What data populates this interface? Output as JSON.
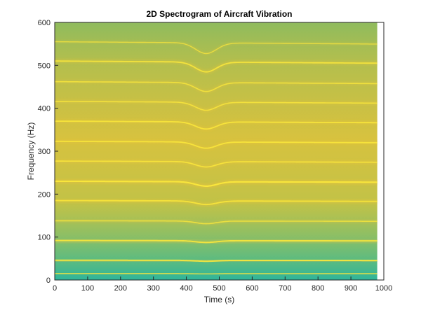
{
  "chart_data": {
    "type": "heatmap",
    "title": "2D Spectrogram of Aircraft Vibration",
    "xlabel": "Time (s)",
    "ylabel": "Frequency (Hz)",
    "xlim": [
      0,
      1000
    ],
    "ylim": [
      0,
      600
    ],
    "x_data_extent": [
      0,
      980
    ],
    "x_ticks": [
      0,
      100,
      200,
      300,
      400,
      500,
      600,
      700,
      800,
      900,
      1000
    ],
    "y_ticks": [
      0,
      100,
      200,
      300,
      400,
      500,
      600
    ],
    "grid": false,
    "colormap": "parula",
    "colors": {
      "low": "#2fb59a",
      "mid_low": "#7fbf6a",
      "mid": "#b8bf45",
      "high": "#f0c537",
      "peak": "#fde93b"
    },
    "harmonic_bands_hz": [
      {
        "frequency": 15,
        "strength": 0.5
      },
      {
        "frequency": 46,
        "strength": 0.85
      },
      {
        "frequency": 92,
        "strength": 0.8
      },
      {
        "frequency": 138,
        "strength": 0.55
      },
      {
        "frequency": 185,
        "strength": 0.75
      },
      {
        "frequency": 230,
        "strength": 0.9
      },
      {
        "frequency": 277,
        "strength": 0.65
      },
      {
        "frequency": 323,
        "strength": 0.7
      },
      {
        "frequency": 370,
        "strength": 0.7
      },
      {
        "frequency": 416,
        "strength": 0.6
      },
      {
        "frequency": 462,
        "strength": 0.55
      },
      {
        "frequency": 510,
        "strength": 0.7
      },
      {
        "frequency": 555,
        "strength": 0.4
      }
    ],
    "frequency_dip": {
      "time_s": 460,
      "width_s": 45,
      "relative_depth": 0.045
    }
  }
}
